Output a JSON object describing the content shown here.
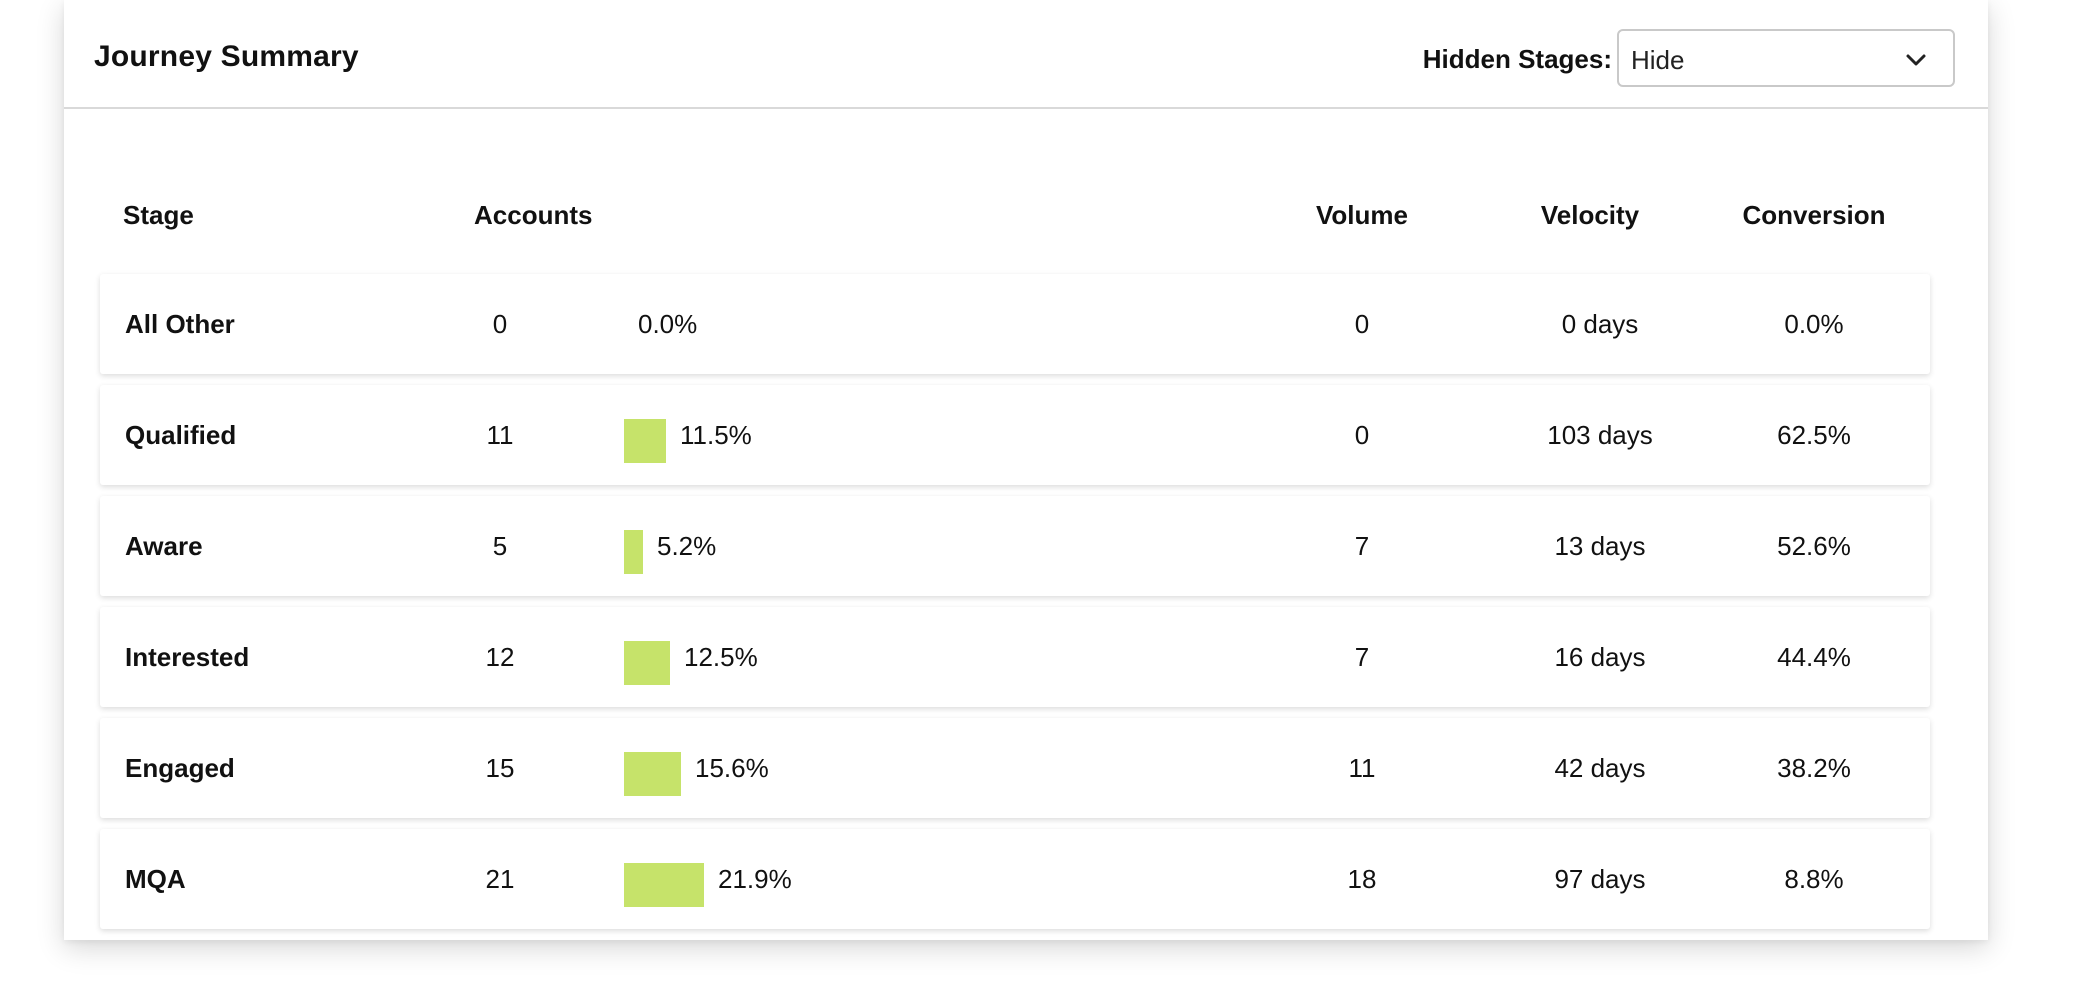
{
  "header": {
    "title": "Journey Summary",
    "hidden_stages_label": "Hidden Stages:",
    "hidden_stages_value": "Hide"
  },
  "columns": {
    "stage": "Stage",
    "accounts": "Accounts",
    "volume": "Volume",
    "velocity": "Velocity",
    "conversion": "Conversion"
  },
  "colors": {
    "bar": "#c6e36a"
  },
  "rows": [
    {
      "stage": "All Other",
      "accounts": "0",
      "share": 0.0,
      "share_label": "0.0%",
      "volume": "0",
      "velocity": "0 days",
      "conversion": "0.0%"
    },
    {
      "stage": "Qualified",
      "accounts": "11",
      "share": 11.5,
      "share_label": "11.5%",
      "volume": "0",
      "velocity": "103 days",
      "conversion": "62.5%"
    },
    {
      "stage": "Aware",
      "accounts": "5",
      "share": 5.2,
      "share_label": "5.2%",
      "volume": "7",
      "velocity": "13 days",
      "conversion": "52.6%"
    },
    {
      "stage": "Interested",
      "accounts": "12",
      "share": 12.5,
      "share_label": "12.5%",
      "volume": "7",
      "velocity": "16 days",
      "conversion": "44.4%"
    },
    {
      "stage": "Engaged",
      "accounts": "15",
      "share": 15.6,
      "share_label": "15.6%",
      "volume": "11",
      "velocity": "42 days",
      "conversion": "38.2%"
    },
    {
      "stage": "MQA",
      "accounts": "21",
      "share": 21.9,
      "share_label": "21.9%",
      "volume": "18",
      "velocity": "97 days",
      "conversion": "8.8%"
    }
  ]
}
